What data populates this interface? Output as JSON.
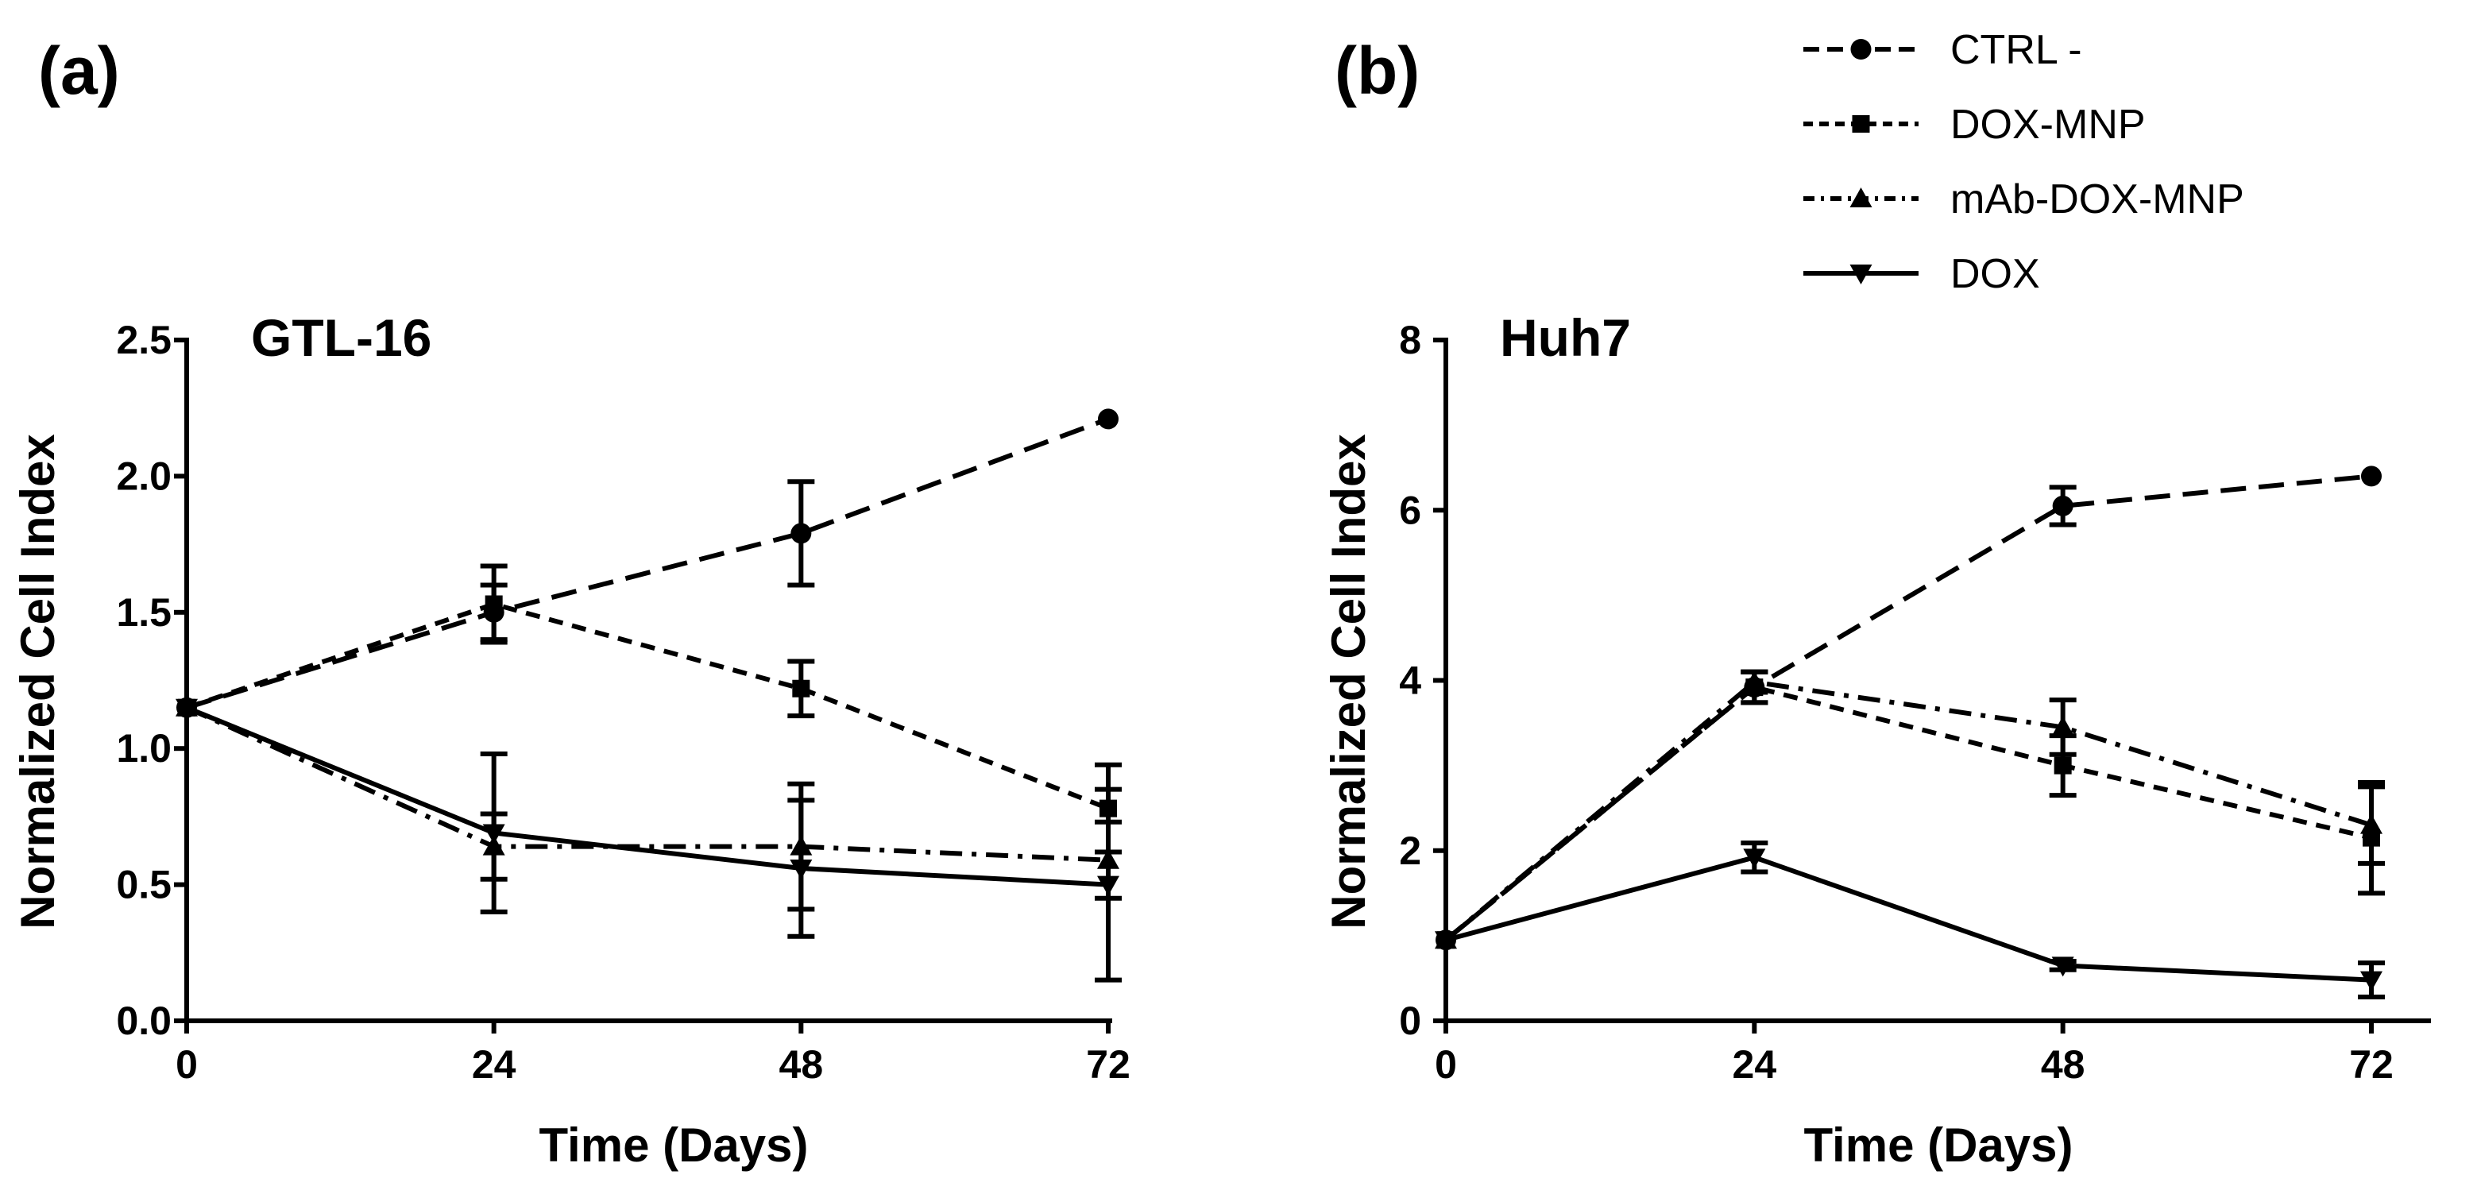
{
  "legend": {
    "entries": [
      {
        "name": "CTRL -",
        "marker": "circle",
        "dash": "long-dash"
      },
      {
        "name": "DOX-MNP",
        "marker": "square",
        "dash": "short-dash"
      },
      {
        "name": "mAb-DOX-MNP",
        "marker": "triangle-up",
        "dash": "dash-dot"
      },
      {
        "name": "DOX",
        "marker": "triangle-down",
        "dash": "solid"
      }
    ]
  },
  "chart_data": [
    {
      "type": "line",
      "panel_label": "(a)",
      "title": "GTL-16",
      "xlabel": "Time (Days)",
      "ylabel": "Normalized Cell Index",
      "x": [
        0,
        24,
        48,
        72
      ],
      "xticks": [
        "0",
        "24",
        "48",
        "72"
      ],
      "xlim": [
        0,
        72
      ],
      "ylim": [
        0,
        2.5
      ],
      "yticks": [
        "0.0",
        "0.5",
        "1.0",
        "1.5",
        "2.0",
        "2.5"
      ],
      "series": [
        {
          "name": "CTRL -",
          "values": [
            1.15,
            1.5,
            1.79,
            2.21
          ],
          "errors": [
            0,
            0.1,
            0.19,
            0
          ]
        },
        {
          "name": "DOX-MNP",
          "values": [
            1.15,
            1.53,
            1.22,
            0.78
          ],
          "errors": [
            0,
            0.14,
            0.1,
            0.16
          ]
        },
        {
          "name": "mAb-DOX-MNP",
          "values": [
            1.15,
            0.64,
            0.64,
            0.59
          ],
          "errors": [
            0,
            0.12,
            0.23,
            0.14
          ]
        },
        {
          "name": "DOX",
          "values": [
            1.15,
            0.69,
            0.56,
            0.5
          ],
          "errors": [
            0,
            0.29,
            0.25,
            0.35
          ]
        }
      ]
    },
    {
      "type": "line",
      "panel_label": "(b)",
      "title": "Huh7",
      "xlabel": "Time (Days)",
      "ylabel": "Normalized Cell Index",
      "x": [
        0,
        24,
        48,
        72
      ],
      "xticks": [
        "0",
        "24",
        "48",
        "72"
      ],
      "xlim": [
        0,
        72
      ],
      "ylim": [
        0,
        8
      ],
      "yticks": [
        "0",
        "2",
        "4",
        "6",
        "8"
      ],
      "series": [
        {
          "name": "CTRL -",
          "values": [
            0.95,
            3.92,
            6.05,
            6.4
          ],
          "errors": [
            0,
            0.18,
            0.22,
            0
          ]
        },
        {
          "name": "DOX-MNP",
          "values": [
            0.95,
            3.92,
            3.0,
            2.15
          ],
          "errors": [
            0,
            0.18,
            0.35,
            0.65
          ]
        },
        {
          "name": "mAb-DOX-MNP",
          "values": [
            0.95,
            3.98,
            3.45,
            2.3
          ],
          "errors": [
            0,
            0.12,
            0.32,
            0.45
          ]
        },
        {
          "name": "DOX",
          "values": [
            0.95,
            1.92,
            0.65,
            0.48
          ],
          "errors": [
            0,
            0.17,
            0.05,
            0.2
          ]
        }
      ]
    }
  ]
}
